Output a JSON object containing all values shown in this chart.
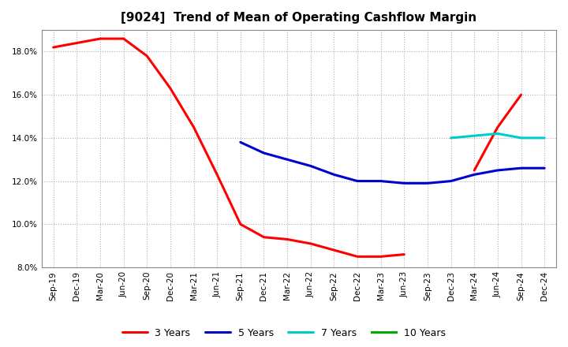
{
  "title": "[9024]  Trend of Mean of Operating Cashflow Margin",
  "background_color": "#ffffff",
  "plot_background": "#ffffff",
  "grid_color": "#b0b0b0",
  "ylim": [
    0.08,
    0.19
  ],
  "yticks": [
    0.08,
    0.1,
    0.12,
    0.14,
    0.16,
    0.18
  ],
  "x_labels": [
    "Sep-19",
    "Dec-19",
    "Mar-20",
    "Jun-20",
    "Sep-20",
    "Dec-20",
    "Mar-21",
    "Jun-21",
    "Sep-21",
    "Dec-21",
    "Mar-22",
    "Jun-22",
    "Sep-22",
    "Dec-22",
    "Mar-23",
    "Jun-23",
    "Sep-23",
    "Dec-23",
    "Mar-24",
    "Jun-24",
    "Sep-24",
    "Dec-24"
  ],
  "series_3y": {
    "label": "3 Years",
    "color": "#ff0000",
    "values": [
      0.182,
      0.184,
      0.186,
      0.186,
      0.178,
      0.163,
      0.145,
      0.123,
      0.1,
      0.094,
      0.093,
      0.091,
      0.088,
      0.085,
      0.085,
      0.086,
      null,
      null,
      0.125,
      0.145,
      0.16,
      null
    ]
  },
  "series_5y": {
    "label": "5 Years",
    "color": "#0000cc",
    "values": [
      null,
      null,
      null,
      null,
      null,
      null,
      null,
      null,
      0.138,
      0.133,
      0.13,
      0.127,
      0.123,
      0.12,
      0.12,
      0.119,
      0.119,
      0.12,
      0.123,
      0.125,
      0.126,
      0.126
    ]
  },
  "series_7y": {
    "label": "7 Years",
    "color": "#00cccc",
    "values": [
      null,
      null,
      null,
      null,
      null,
      null,
      null,
      null,
      null,
      null,
      null,
      null,
      null,
      null,
      null,
      null,
      null,
      0.14,
      0.141,
      0.142,
      0.14,
      0.14
    ]
  },
  "series_10y": {
    "label": "10 Years",
    "color": "#00aa00",
    "values": [
      null,
      null,
      null,
      null,
      null,
      null,
      null,
      null,
      null,
      null,
      null,
      null,
      null,
      null,
      null,
      null,
      null,
      null,
      null,
      null,
      null,
      null
    ]
  },
  "legend_ncol": 4,
  "title_fontsize": 11,
  "tick_fontsize": 7.5,
  "legend_fontsize": 9,
  "linewidth": 2.2
}
